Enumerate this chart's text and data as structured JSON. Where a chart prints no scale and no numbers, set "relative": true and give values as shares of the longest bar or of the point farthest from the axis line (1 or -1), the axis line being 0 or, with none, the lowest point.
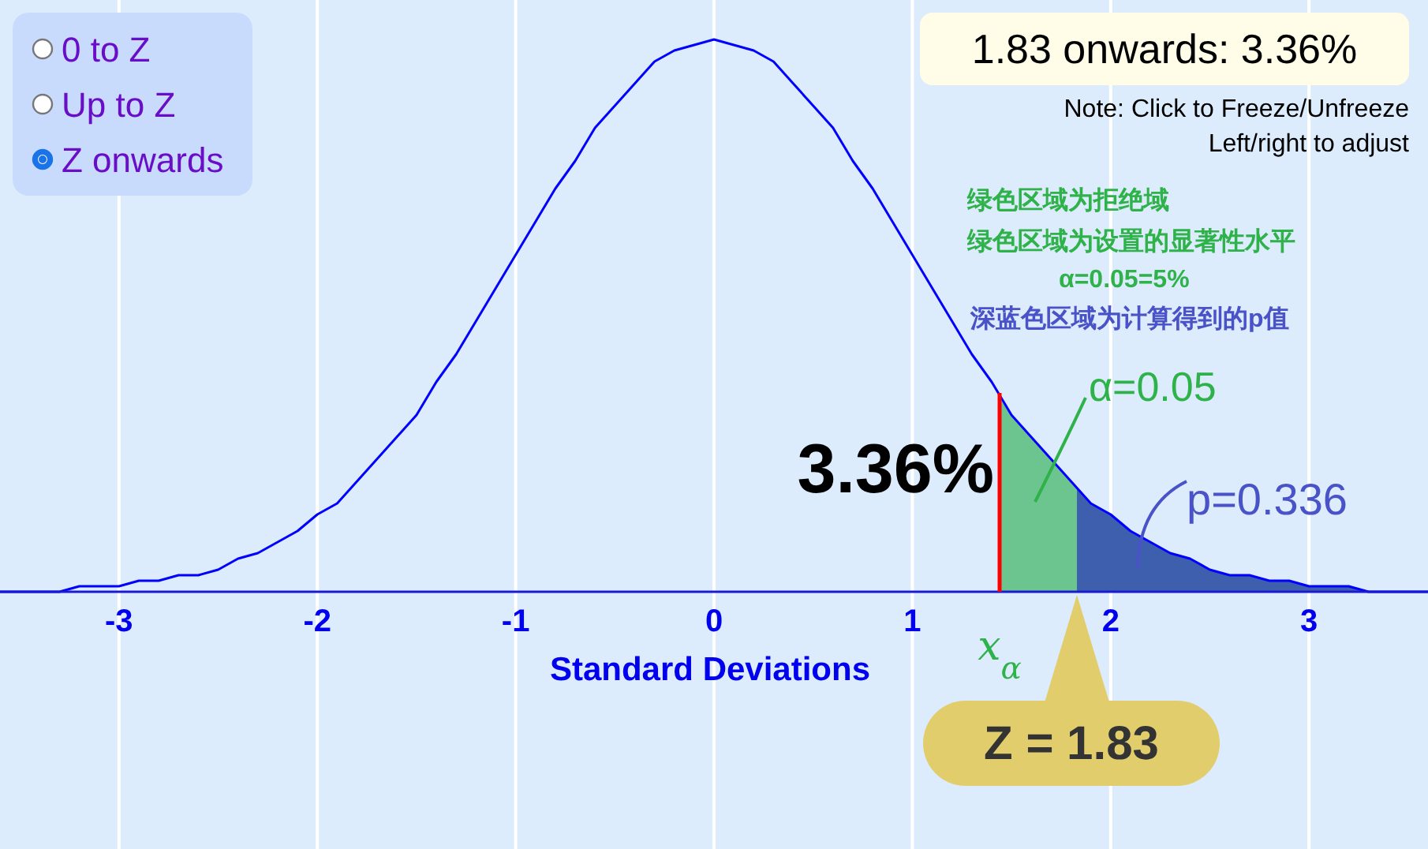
{
  "chart_data": {
    "type": "line",
    "relative": true,
    "xlabel": "Standard Deviations",
    "xlim": [
      -3.6,
      3.6
    ],
    "xticks": [
      -3,
      -2,
      -1,
      0,
      1,
      2,
      3
    ],
    "grid": "x",
    "series": [
      {
        "type": "line",
        "color": "#0000ff",
        "x": [
          -3.6,
          -3.5,
          -3.4,
          -3.3,
          -3.2,
          -3.1,
          -3.0,
          -2.9,
          -2.8,
          -2.7,
          -2.6,
          -2.5,
          -2.4,
          -2.3,
          -2.2,
          -2.1,
          -2.0,
          -1.9,
          -1.8,
          -1.7,
          -1.6,
          -1.5,
          -1.4,
          -1.3,
          -1.2,
          -1.1,
          -1.0,
          -0.9,
          -0.8,
          -0.7,
          -0.6,
          -0.5,
          -0.4,
          -0.3,
          -0.2,
          -0.1,
          0,
          0.1,
          0.2,
          0.3,
          0.4,
          0.5,
          0.6,
          0.7,
          0.8,
          0.9,
          1.0,
          1.1,
          1.2,
          1.3,
          1.4,
          1.5,
          1.6,
          1.7,
          1.8,
          1.9,
          2.0,
          2.1,
          2.2,
          2.3,
          2.4,
          2.5,
          2.6,
          2.7,
          2.8,
          2.9,
          3.0,
          3.1,
          3.2,
          3.3,
          3.4,
          3.5,
          3.6
        ],
        "values": [
          0,
          0,
          0,
          0,
          0.01,
          0.01,
          0.01,
          0.02,
          0.02,
          0.03,
          0.03,
          0.04,
          0.06,
          0.07,
          0.09,
          0.11,
          0.14,
          0.16,
          0.2,
          0.24,
          0.28,
          0.32,
          0.38,
          0.43,
          0.49,
          0.55,
          0.61,
          0.67,
          0.73,
          0.78,
          0.84,
          0.88,
          0.92,
          0.96,
          0.98,
          0.99,
          1,
          0.99,
          0.98,
          0.96,
          0.92,
          0.88,
          0.84,
          0.78,
          0.73,
          0.67,
          0.61,
          0.55,
          0.49,
          0.43,
          0.38,
          0.32,
          0.28,
          0.24,
          0.2,
          0.16,
          0.14,
          0.11,
          0.09,
          0.07,
          0.06,
          0.04,
          0.03,
          0.03,
          0.02,
          0.02,
          0.01,
          0.01,
          0.01,
          0,
          0,
          0,
          0
        ]
      },
      {
        "type": "area",
        "color": "#6cc58f",
        "x": [
          1.44,
          1.5,
          1.6,
          1.7,
          1.8,
          1.83
        ],
        "values": [
          0.35,
          0.32,
          0.28,
          0.24,
          0.2,
          0.19
        ]
      },
      {
        "type": "area",
        "color": "#3d5fae",
        "x": [
          1.83,
          1.9,
          2.0,
          2.1,
          2.2,
          2.3,
          2.4,
          2.5,
          2.6,
          2.7,
          2.8,
          2.9,
          3.0,
          3.1,
          3.2,
          3.3,
          3.4,
          3.5,
          3.6
        ],
        "values": [
          0.19,
          0.16,
          0.14,
          0.11,
          0.09,
          0.07,
          0.06,
          0.04,
          0.03,
          0.03,
          0.02,
          0.02,
          0.01,
          0.01,
          0.01,
          0,
          0,
          0,
          0
        ]
      }
    ],
    "ref_lines": [
      {
        "axis": "x",
        "value": 1.44,
        "label": "x$_{α}$",
        "color": "#ff0000"
      }
    ],
    "annotations": [
      "0 to Z",
      "Up to Z",
      "Z onwards",
      "1.83 onwards: 3.36%",
      "Note: Click to Freeze/Unfreeze",
      "Left/right to adjust",
      "绿色区域为拒绝域",
      "绿色区域为设置的显著性水平",
      "α=0.05=5%",
      "深蓝色区域为计算得到的p值",
      "3.36%",
      {
        "text": "Z = 1.83",
        "x": 1.83,
        "y": 0
      },
      "α=0.05",
      "p=0.336"
    ]
  }
}
